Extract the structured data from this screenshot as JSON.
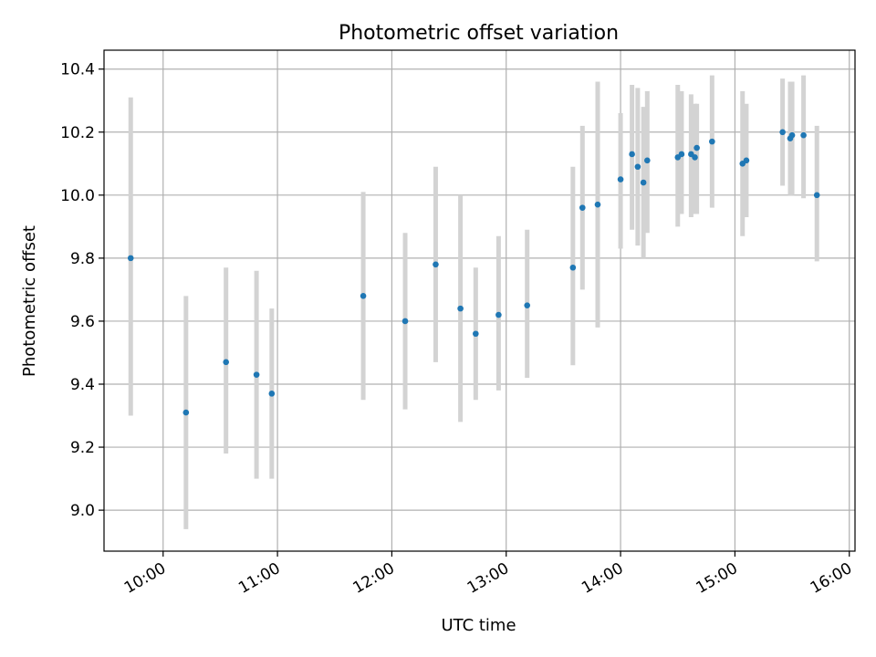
{
  "chart_data": {
    "type": "scatter",
    "title": "Photometric offset variation",
    "xlabel": "UTC time",
    "ylabel": "Photometric offset",
    "x_ticks": [
      "10:00",
      "11:00",
      "12:00",
      "13:00",
      "14:00",
      "15:00",
      "16:00"
    ],
    "y_ticks": [
      "9.0",
      "9.2",
      "9.4",
      "9.6",
      "9.8",
      "10.0",
      "10.2",
      "10.4"
    ],
    "xlim": [
      "09:29",
      "16:03"
    ],
    "ylim": [
      8.87,
      10.46
    ],
    "grid": true,
    "marker_color": "#1f77b4",
    "errorbar_color": "#d3d3d3",
    "points": [
      {
        "t": "09:43",
        "y": 9.8,
        "lo": 9.3,
        "hi": 10.31
      },
      {
        "t": "10:12",
        "y": 9.31,
        "lo": 8.94,
        "hi": 9.68
      },
      {
        "t": "10:33",
        "y": 9.47,
        "lo": 9.18,
        "hi": 9.77
      },
      {
        "t": "10:49",
        "y": 9.43,
        "lo": 9.1,
        "hi": 9.76
      },
      {
        "t": "10:57",
        "y": 9.37,
        "lo": 9.1,
        "hi": 9.64
      },
      {
        "t": "11:45",
        "y": 9.68,
        "lo": 9.35,
        "hi": 10.01
      },
      {
        "t": "12:07",
        "y": 9.6,
        "lo": 9.32,
        "hi": 9.88
      },
      {
        "t": "12:23",
        "y": 9.78,
        "lo": 9.47,
        "hi": 10.09
      },
      {
        "t": "12:36",
        "y": 9.64,
        "lo": 9.28,
        "hi": 10.0
      },
      {
        "t": "12:44",
        "y": 9.56,
        "lo": 9.35,
        "hi": 9.77
      },
      {
        "t": "12:56",
        "y": 9.62,
        "lo": 9.38,
        "hi": 9.87
      },
      {
        "t": "13:11",
        "y": 9.65,
        "lo": 9.42,
        "hi": 9.89
      },
      {
        "t": "13:35",
        "y": 9.77,
        "lo": 9.46,
        "hi": 10.09
      },
      {
        "t": "13:40",
        "y": 9.96,
        "lo": 9.7,
        "hi": 10.22
      },
      {
        "t": "13:48",
        "y": 9.97,
        "lo": 9.58,
        "hi": 10.36
      },
      {
        "t": "14:00",
        "y": 10.05,
        "lo": 9.83,
        "hi": 10.26
      },
      {
        "t": "14:06",
        "y": 10.13,
        "lo": 9.89,
        "hi": 10.35
      },
      {
        "t": "14:09",
        "y": 10.09,
        "lo": 9.84,
        "hi": 10.34
      },
      {
        "t": "14:12",
        "y": 10.04,
        "lo": 9.8,
        "hi": 10.28
      },
      {
        "t": "14:14",
        "y": 10.11,
        "lo": 9.88,
        "hi": 10.33
      },
      {
        "t": "14:30",
        "y": 10.12,
        "lo": 9.9,
        "hi": 10.35
      },
      {
        "t": "14:32",
        "y": 10.13,
        "lo": 9.94,
        "hi": 10.33
      },
      {
        "t": "14:37",
        "y": 10.13,
        "lo": 9.93,
        "hi": 10.32
      },
      {
        "t": "14:39",
        "y": 10.12,
        "lo": 9.94,
        "hi": 10.29
      },
      {
        "t": "14:40",
        "y": 10.15,
        "lo": 9.94,
        "hi": 10.29
      },
      {
        "t": "14:48",
        "y": 10.17,
        "lo": 9.96,
        "hi": 10.38
      },
      {
        "t": "15:04",
        "y": 10.1,
        "lo": 9.87,
        "hi": 10.33
      },
      {
        "t": "15:06",
        "y": 10.11,
        "lo": 9.93,
        "hi": 10.29
      },
      {
        "t": "15:25",
        "y": 10.2,
        "lo": 10.03,
        "hi": 10.37
      },
      {
        "t": "15:29",
        "y": 10.18,
        "lo": 10.0,
        "hi": 10.36
      },
      {
        "t": "15:30",
        "y": 10.19,
        "lo": 10.0,
        "hi": 10.36
      },
      {
        "t": "15:36",
        "y": 10.19,
        "lo": 9.99,
        "hi": 10.38
      },
      {
        "t": "15:43",
        "y": 10.0,
        "lo": 9.79,
        "hi": 10.22
      }
    ]
  }
}
